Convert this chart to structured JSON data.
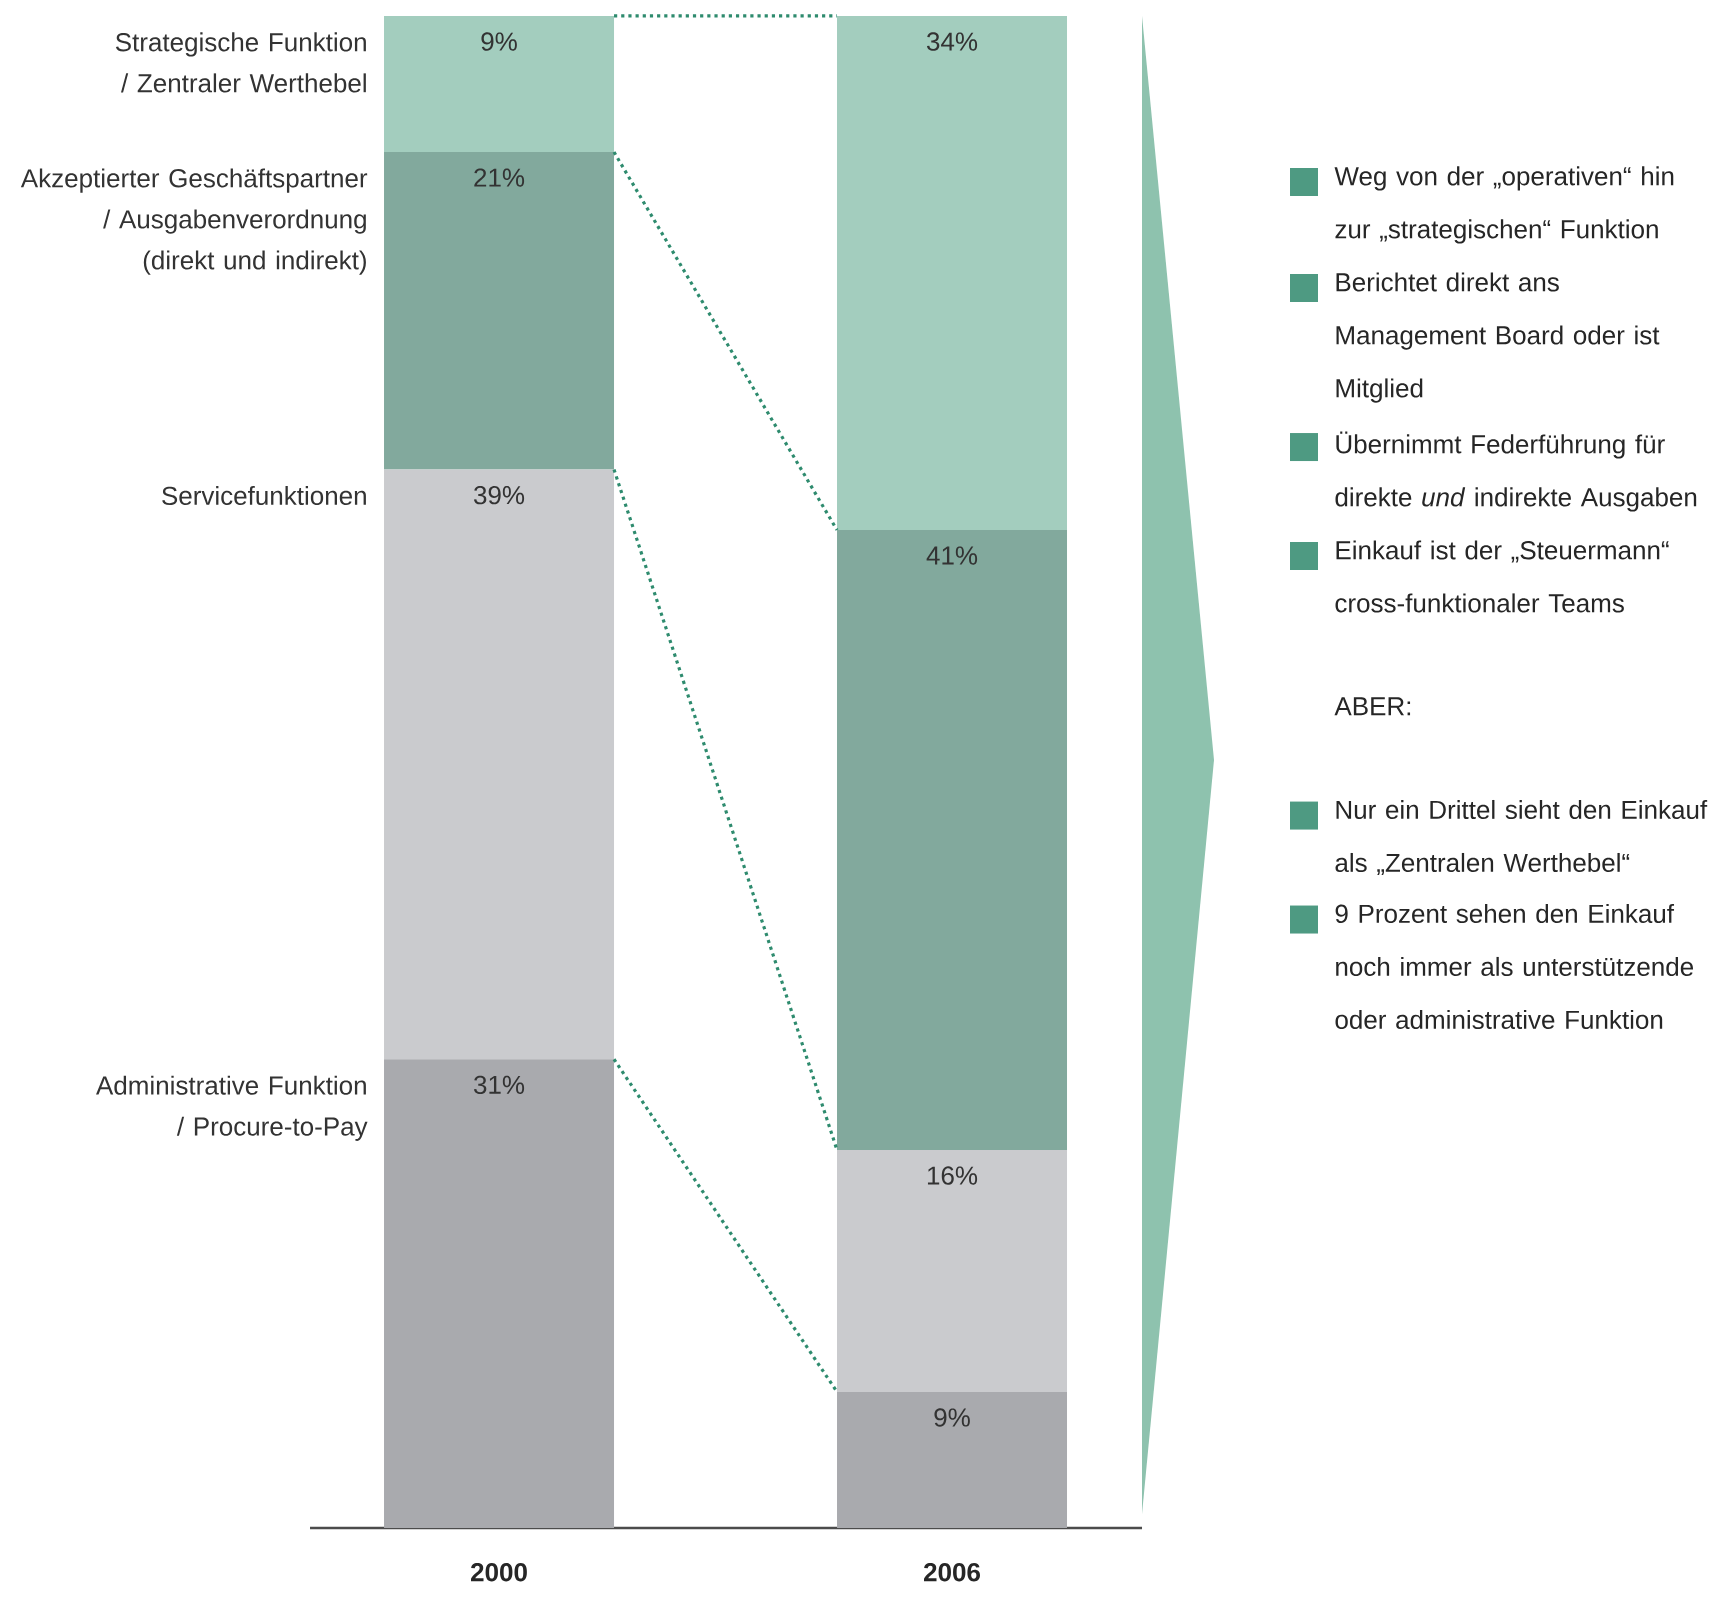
{
  "chart_data": {
    "type": "bar",
    "stacked": true,
    "categories": [
      "2000",
      "2006"
    ],
    "series": [
      {
        "name": "Administrative Funktion / Procure-to-Pay",
        "color": "#a9aaae",
        "values": [
          31,
          9
        ],
        "value_labels": [
          "31%",
          "9%"
        ]
      },
      {
        "name": "Servicefunktionen",
        "color": "#cacbce",
        "values": [
          39,
          16
        ],
        "value_labels": [
          "39%",
          "16%"
        ]
      },
      {
        "name": "Akzeptierter Geschäftspartner / Ausgabenverordnung (direkt und indirekt)",
        "color": "#82a99d",
        "values": [
          21,
          41
        ],
        "value_labels": [
          "21%",
          "41%"
        ]
      },
      {
        "name": "Strategische Funktion / Zentraler Werthebel",
        "color": "#a3cdbe",
        "values": [
          9,
          34
        ],
        "value_labels": [
          "9%",
          "34%"
        ]
      }
    ],
    "annotations": [
      "Weg von der „operativen“ hin zur „strategischen“ Funktion",
      "Berichtet direkt ans Management Board oder ist Mitglied",
      "Übernimmt Federführung für direkte *und* indirekte Ausgaben",
      "Einkauf ist der „Steuermann“ cross-funktionaler Teams",
      "ABER:",
      "Nur ein Drittel sieht den Einkauf als „Zentralen Werthebel“",
      "9 Prozent sehen den Einkauf noch immer als unterstützende oder administrative Funktion"
    ]
  }
}
